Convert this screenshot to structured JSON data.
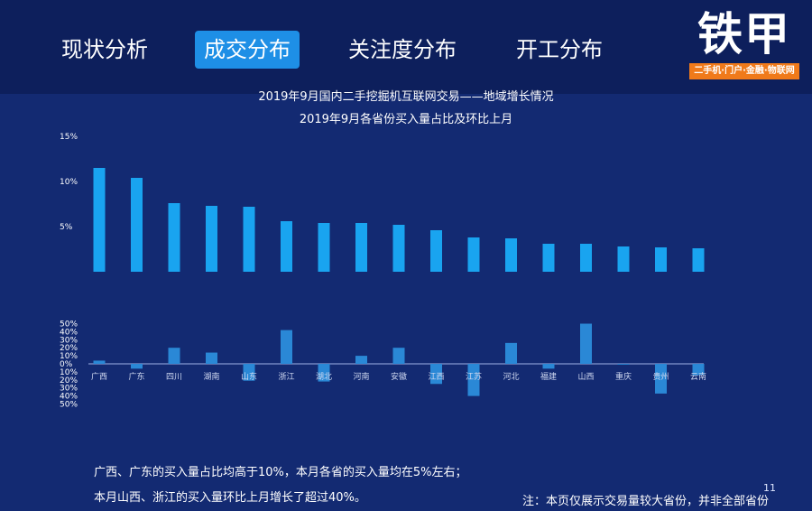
{
  "tabs": [
    {
      "label": "现状分析",
      "active": false
    },
    {
      "label": "成交分布",
      "active": true
    },
    {
      "label": "关注度分布",
      "active": false
    },
    {
      "label": "开工分布",
      "active": false
    }
  ],
  "logo": {
    "name": "铁甲",
    "tagline": "二手机·门户·金融·物联网"
  },
  "title_line1": "2019年9月国内二手挖掘机互联网交易——地域增长情况",
  "title_line2": "2019年9月各省份买入量占比及环比上月",
  "notes": {
    "line1": "广西、广东的买入量占比均高于10%，本月各省的买入量均在5%左右；",
    "line2": "本月山西、浙江的买入量环比上月增长了超过40%。",
    "disclaimer": "注：本页仅展示交易量较大省份，并非全部省份",
    "page_number": "11"
  },
  "colors": {
    "background": "#132a72",
    "header": "#0d1f5c",
    "active_tab": "#1e8fe6",
    "bar_top": "#19a4f0",
    "bar_bottom": "#2a88d6",
    "logo_accent": "#f07a1a"
  },
  "chart_data": [
    {
      "type": "bar",
      "title": "2019年9月各省份买入量占比",
      "categories": [
        "广西",
        "广东",
        "四川",
        "湖南",
        "山东",
        "浙江",
        "湖北",
        "河南",
        "安徽",
        "江西",
        "江苏",
        "河北",
        "福建",
        "山西",
        "重庆",
        "贵州",
        "云南"
      ],
      "values": [
        11.5,
        10.4,
        7.6,
        7.3,
        7.2,
        5.6,
        5.4,
        5.4,
        5.2,
        4.6,
        3.8,
        3.7,
        3.1,
        3.1,
        2.8,
        2.7,
        2.6
      ],
      "ylim": [
        0,
        15
      ],
      "yticks": [
        "5%",
        "10%",
        "15%"
      ],
      "ytick_values": [
        5,
        10,
        15
      ]
    },
    {
      "type": "bar",
      "title": "环比上月",
      "categories": [
        "广西",
        "广东",
        "四川",
        "湖南",
        "山东",
        "浙江",
        "湖北",
        "河南",
        "安徽",
        "江西",
        "江苏",
        "河北",
        "福建",
        "山西",
        "重庆",
        "贵州",
        "云南"
      ],
      "values": [
        4,
        -6,
        20,
        14,
        -21,
        42,
        -22,
        10,
        20,
        -25,
        -40,
        26,
        -6,
        50,
        -1,
        -37,
        -14
      ],
      "ylim": [
        -50,
        50
      ],
      "yticks": [
        "50%",
        "40%",
        "30%",
        "20%",
        "10%",
        "0%",
        "10%",
        "20%",
        "30%",
        "40%",
        "50%"
      ],
      "ytick_values": [
        50,
        40,
        30,
        20,
        10,
        0,
        -10,
        -20,
        -30,
        -40,
        -50
      ]
    }
  ]
}
